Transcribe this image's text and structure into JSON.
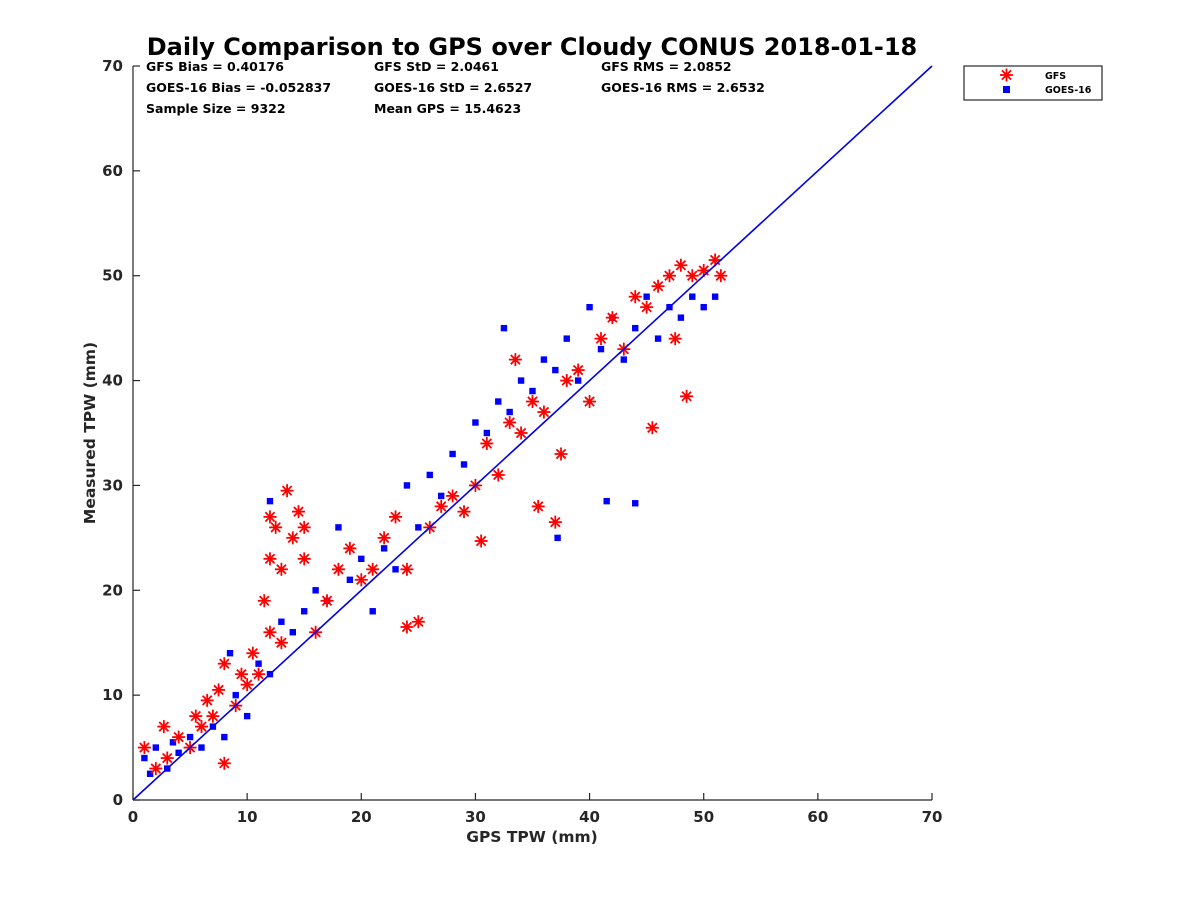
{
  "chart_data": {
    "type": "scatter",
    "title": "Daily Comparison to GPS over Cloudy CONUS 2018-01-18",
    "xlabel": "GPS TPW (mm)",
    "ylabel": "Measured TPW (mm)",
    "xlim": [
      0,
      70
    ],
    "ylim": [
      0,
      70
    ],
    "xticks": [
      "0",
      "10",
      "20",
      "30",
      "40",
      "50",
      "60",
      "70"
    ],
    "yticks": [
      "0",
      "10",
      "20",
      "30",
      "40",
      "50",
      "60",
      "70"
    ],
    "grid": false,
    "legend_position": "outside-top-right",
    "stats": [
      [
        "GFS Bias = 0.40176",
        "GFS StD = 2.0461",
        "GFS RMS = 2.0852"
      ],
      [
        "GOES-16 Bias = -0.052837",
        "GOES-16 StD = 2.6527",
        "GOES-16 RMS = 2.6532"
      ],
      [
        "Sample Size = 9322",
        "Mean GPS = 15.4623",
        ""
      ]
    ],
    "reference_line": {
      "x": [
        0,
        70
      ],
      "y": [
        0,
        70
      ],
      "color": "#0000e6"
    },
    "series": [
      {
        "name": "GFS",
        "marker": "asterisk",
        "color": "#ff0000",
        "points": [
          [
            1,
            5
          ],
          [
            2,
            3
          ],
          [
            2.7,
            7
          ],
          [
            3,
            4
          ],
          [
            4,
            6
          ],
          [
            5,
            5
          ],
          [
            5.5,
            8
          ],
          [
            6,
            7
          ],
          [
            6.5,
            9.5
          ],
          [
            7,
            8
          ],
          [
            7.5,
            10.5
          ],
          [
            8,
            3.5
          ],
          [
            8,
            13
          ],
          [
            9,
            9
          ],
          [
            9.5,
            12
          ],
          [
            10,
            11
          ],
          [
            10.5,
            14
          ],
          [
            11,
            12
          ],
          [
            11.5,
            19
          ],
          [
            12,
            23
          ],
          [
            12,
            27
          ],
          [
            12.5,
            26
          ],
          [
            13,
            22
          ],
          [
            13.5,
            29.5
          ],
          [
            14,
            25
          ],
          [
            14.5,
            27.5
          ],
          [
            15,
            26
          ],
          [
            15,
            23
          ],
          [
            12,
            16
          ],
          [
            13,
            15
          ],
          [
            16,
            16
          ],
          [
            17,
            19
          ],
          [
            18,
            22
          ],
          [
            19,
            24
          ],
          [
            20,
            21
          ],
          [
            21,
            22
          ],
          [
            22,
            25
          ],
          [
            23,
            27
          ],
          [
            24,
            22
          ],
          [
            25,
            17
          ],
          [
            24,
            16.5
          ],
          [
            26,
            26
          ],
          [
            27,
            28
          ],
          [
            28,
            29
          ],
          [
            29,
            27.5
          ],
          [
            30,
            30
          ],
          [
            30.5,
            24.7
          ],
          [
            31,
            34
          ],
          [
            32,
            31
          ],
          [
            33,
            36
          ],
          [
            33.5,
            42
          ],
          [
            34,
            35
          ],
          [
            35,
            38
          ],
          [
            35.5,
            28
          ],
          [
            36,
            37
          ],
          [
            37,
            26.5
          ],
          [
            37.5,
            33
          ],
          [
            38,
            40
          ],
          [
            39,
            41
          ],
          [
            40,
            38
          ],
          [
            41,
            44
          ],
          [
            42,
            46
          ],
          [
            43,
            43
          ],
          [
            44,
            48
          ],
          [
            45,
            47
          ],
          [
            45.5,
            35.5
          ],
          [
            46,
            49
          ],
          [
            47,
            50
          ],
          [
            47.5,
            44
          ],
          [
            48,
            51
          ],
          [
            48.5,
            38.5
          ],
          [
            49,
            50
          ],
          [
            50,
            50.5
          ],
          [
            51,
            51.5
          ],
          [
            51.5,
            50
          ]
        ]
      },
      {
        "name": "GOES-16",
        "marker": "square",
        "color": "#0000ff",
        "points": [
          [
            1,
            4
          ],
          [
            1.5,
            2.5
          ],
          [
            2,
            5
          ],
          [
            3,
            3
          ],
          [
            3.5,
            5.5
          ],
          [
            4,
            4.5
          ],
          [
            5,
            6
          ],
          [
            6,
            5
          ],
          [
            7,
            7
          ],
          [
            8,
            6
          ],
          [
            8.5,
            14
          ],
          [
            9,
            10
          ],
          [
            10,
            8
          ],
          [
            11,
            13
          ],
          [
            12,
            12
          ],
          [
            12,
            28.5
          ],
          [
            13,
            17
          ],
          [
            14,
            16
          ],
          [
            15,
            18
          ],
          [
            16,
            20
          ],
          [
            17,
            19
          ],
          [
            18,
            26
          ],
          [
            19,
            21
          ],
          [
            20,
            23
          ],
          [
            21,
            18
          ],
          [
            22,
            24
          ],
          [
            23,
            22
          ],
          [
            24,
            30
          ],
          [
            25,
            26
          ],
          [
            26,
            31
          ],
          [
            27,
            29
          ],
          [
            28,
            33
          ],
          [
            29,
            32
          ],
          [
            30,
            36
          ],
          [
            31,
            35
          ],
          [
            32,
            38
          ],
          [
            32.5,
            45
          ],
          [
            33,
            37
          ],
          [
            34,
            40
          ],
          [
            35,
            39
          ],
          [
            36,
            42
          ],
          [
            37,
            41
          ],
          [
            37.2,
            25
          ],
          [
            38,
            44
          ],
          [
            39,
            40
          ],
          [
            40,
            47
          ],
          [
            41,
            43
          ],
          [
            41.5,
            28.5
          ],
          [
            42,
            46
          ],
          [
            43,
            42
          ],
          [
            44,
            28.3
          ],
          [
            44,
            45
          ],
          [
            45,
            48
          ],
          [
            46,
            44
          ],
          [
            47,
            47
          ],
          [
            48,
            46
          ],
          [
            49,
            48
          ],
          [
            50,
            47
          ],
          [
            51,
            48
          ]
        ]
      }
    ]
  }
}
